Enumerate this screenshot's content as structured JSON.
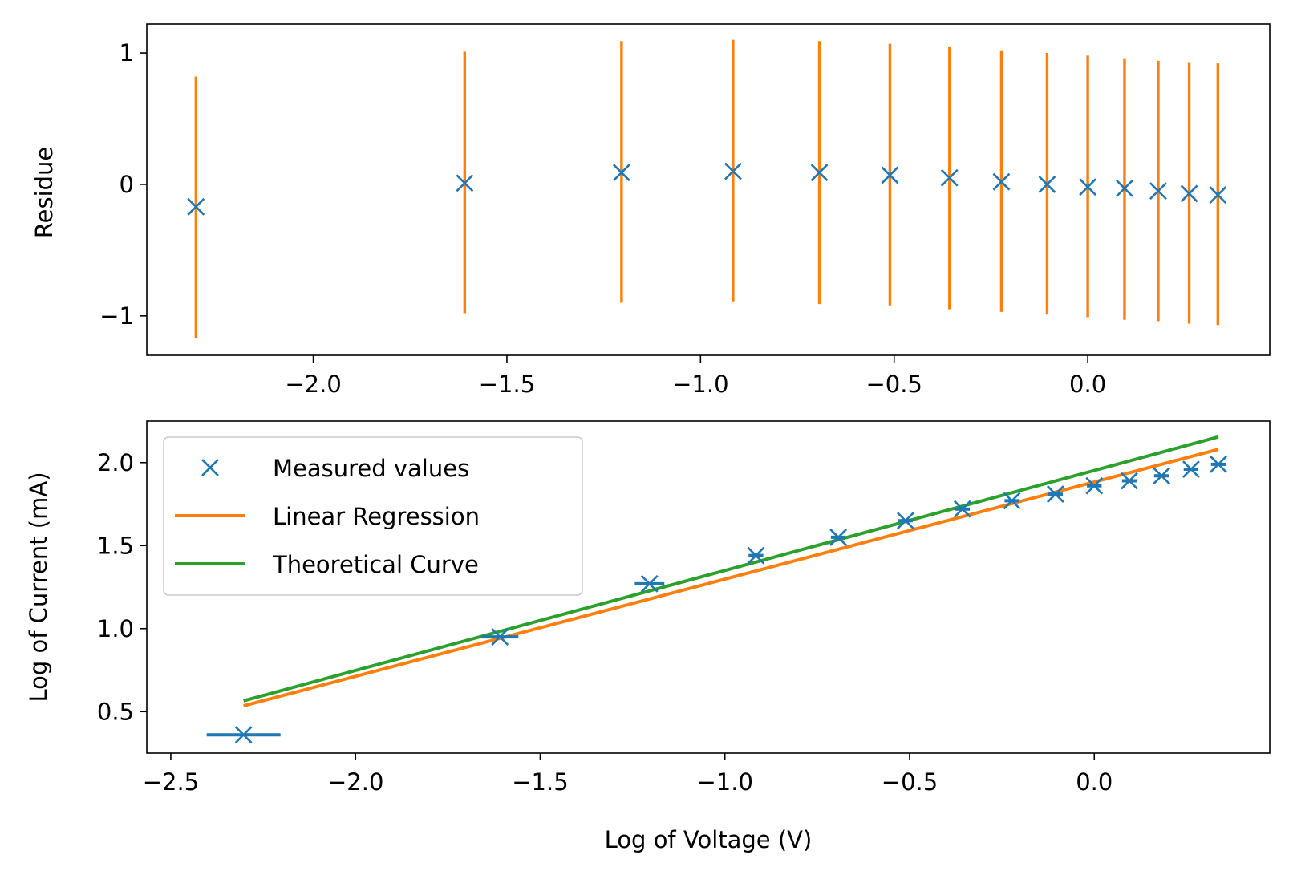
{
  "chart_data": [
    {
      "type": "scatter",
      "title": "",
      "xlabel": "",
      "ylabel": "Residue",
      "xlim": [
        -2.43,
        0.47
      ],
      "ylim": [
        -1.3,
        1.22
      ],
      "xticks": [
        -2.0,
        -1.5,
        -1.0,
        -0.5,
        0.0
      ],
      "xtick_labels": [
        "−2.0",
        "−1.5",
        "−1.0",
        "−0.5",
        "0.0"
      ],
      "yticks": [
        -1,
        0,
        1
      ],
      "ytick_labels": [
        "−1",
        "0",
        "1"
      ],
      "grid": false,
      "colors": {
        "points": "#1f77b4",
        "errorbars": "#ff7f0e"
      },
      "series": [
        {
          "x": [
            -2.303,
            -1.609,
            -1.204,
            -0.916,
            -0.693,
            -0.511,
            -0.357,
            -0.223,
            -0.105,
            0.0,
            0.095,
            0.182,
            0.262,
            0.336
          ],
          "y": [
            -0.17,
            0.01,
            0.09,
            0.1,
            0.09,
            0.07,
            0.05,
            0.02,
            0.0,
            -0.02,
            -0.03,
            -0.05,
            -0.07,
            -0.08
          ],
          "yerr_low": [
            -1.17,
            -0.98,
            -0.9,
            -0.89,
            -0.91,
            -0.92,
            -0.95,
            -0.97,
            -0.99,
            -1.01,
            -1.03,
            -1.04,
            -1.06,
            -1.07
          ],
          "yerr_high": [
            0.82,
            1.01,
            1.09,
            1.1,
            1.09,
            1.07,
            1.05,
            1.02,
            1.0,
            0.98,
            0.96,
            0.94,
            0.93,
            0.92
          ]
        }
      ]
    },
    {
      "type": "line",
      "title": "",
      "xlabel": "Log of Voltage (V)",
      "ylabel": "Log of Current (mA)",
      "xlim": [
        -2.565,
        0.475
      ],
      "ylim": [
        0.25,
        2.25
      ],
      "xticks": [
        -2.5,
        -2.0,
        -1.5,
        -1.0,
        -0.5,
        0.0
      ],
      "xtick_labels": [
        "−2.5",
        "−2.0",
        "−1.5",
        "−1.0",
        "−0.5",
        "0.0"
      ],
      "yticks": [
        0.5,
        1.0,
        1.5,
        2.0
      ],
      "ytick_labels": [
        "0.5",
        "1.0",
        "1.5",
        "2.0"
      ],
      "grid": false,
      "legend_position": "upper-left",
      "series": [
        {
          "name": "Measured values",
          "kind": "markers",
          "color": "#1f77b4",
          "x": [
            -2.303,
            -1.609,
            -1.204,
            -0.916,
            -0.693,
            -0.511,
            -0.357,
            -0.223,
            -0.105,
            0.0,
            0.095,
            0.182,
            0.262,
            0.336
          ],
          "y": [
            0.36,
            0.95,
            1.27,
            1.44,
            1.55,
            1.65,
            1.72,
            1.77,
            1.81,
            1.86,
            1.89,
            1.92,
            1.96,
            1.99
          ],
          "xerr": [
            0.1,
            0.05,
            0.04,
            0.02,
            0.02,
            0.02,
            0.02,
            0.02,
            0.02,
            0.02,
            0.02,
            0.02,
            0.02,
            0.02
          ]
        },
        {
          "name": "Linear Regression",
          "kind": "line",
          "color": "#ff7f0e",
          "x": [
            -2.303,
            0.336
          ],
          "y": [
            0.535,
            2.08
          ]
        },
        {
          "name": "Theoretical Curve",
          "kind": "line",
          "color": "#2ca02c",
          "x": [
            -2.303,
            0.336
          ],
          "y": [
            0.565,
            2.155
          ]
        }
      ]
    }
  ]
}
